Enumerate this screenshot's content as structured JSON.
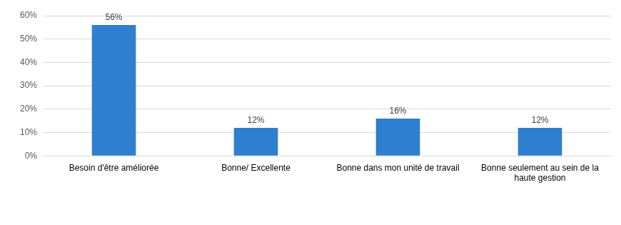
{
  "chart_data": {
    "type": "bar",
    "categories": [
      "Besoin d'être améliorée",
      "Bonne/ Excellente",
      "Bonne dans mon unité de travail",
      "Bonne seulement au sein de la haute gestion"
    ],
    "values": [
      56,
      12,
      16,
      12
    ],
    "value_labels": [
      "56%",
      "12%",
      "16%",
      "12%"
    ],
    "color": "#2f7fd0",
    "ylim": [
      0,
      60
    ],
    "yticks": [
      {
        "value": 0,
        "label": "0%"
      },
      {
        "value": 10,
        "label": "10%"
      },
      {
        "value": 20,
        "label": "20%"
      },
      {
        "value": 30,
        "label": "30%"
      },
      {
        "value": 40,
        "label": "40%"
      },
      {
        "value": 50,
        "label": "50%"
      },
      {
        "value": 60,
        "label": "60%"
      }
    ],
    "grid": true,
    "data_labels": true
  }
}
